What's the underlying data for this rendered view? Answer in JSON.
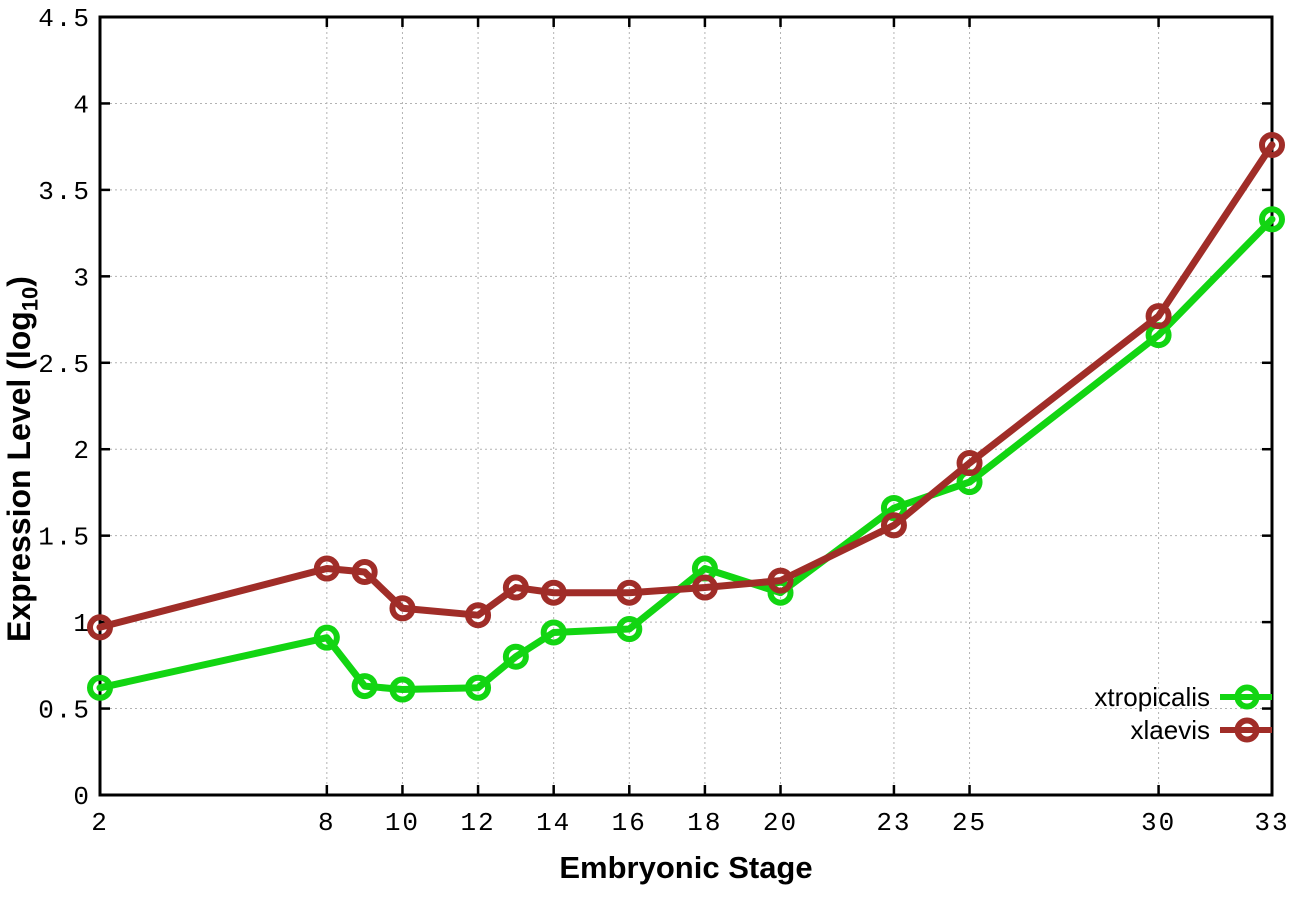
{
  "chart_data": {
    "type": "line",
    "title": "",
    "xlabel": "Embryonic Stage",
    "ylabel": "Expression Level (log10)",
    "ylabel_main": "Expression Level (log",
    "ylabel_sub": "10",
    "ylabel_close": ")",
    "xlim": [
      2,
      33
    ],
    "ylim": [
      0,
      4.5
    ],
    "grid": true,
    "legend_position": "inside-bottom-right",
    "background": "#ffffff",
    "axis_color": "#000000",
    "grid_color": "#b3b3b3",
    "x_tick_values": [
      2,
      8,
      10,
      12,
      14,
      16,
      18,
      20,
      23,
      25,
      30,
      33
    ],
    "x_tick_labels": [
      "2",
      "8",
      "10",
      "12",
      "14",
      "16",
      "18",
      "20",
      "23",
      "25",
      "30",
      "33"
    ],
    "y_tick_values": [
      0,
      0.5,
      1,
      1.5,
      2,
      2.5,
      3,
      3.5,
      4,
      4.5
    ],
    "y_tick_labels": [
      "0",
      "0.5",
      "1",
      "1.5",
      "2",
      "2.5",
      "3",
      "3.5",
      "4",
      "4.5"
    ],
    "x": [
      2,
      8,
      9,
      10,
      12,
      13,
      14,
      16,
      18,
      20,
      23,
      25,
      30,
      33
    ],
    "series": [
      {
        "name": "xtropicalis",
        "color": "#12d512",
        "values": [
          0.62,
          0.91,
          0.63,
          0.61,
          0.62,
          0.8,
          0.94,
          0.96,
          1.31,
          1.17,
          1.66,
          1.81,
          2.66,
          3.33
        ]
      },
      {
        "name": "xlaevis",
        "color": "#a02d28",
        "values": [
          0.97,
          1.31,
          1.29,
          1.08,
          1.04,
          1.2,
          1.17,
          1.17,
          1.2,
          1.24,
          1.56,
          1.92,
          2.77,
          3.76
        ]
      }
    ]
  }
}
